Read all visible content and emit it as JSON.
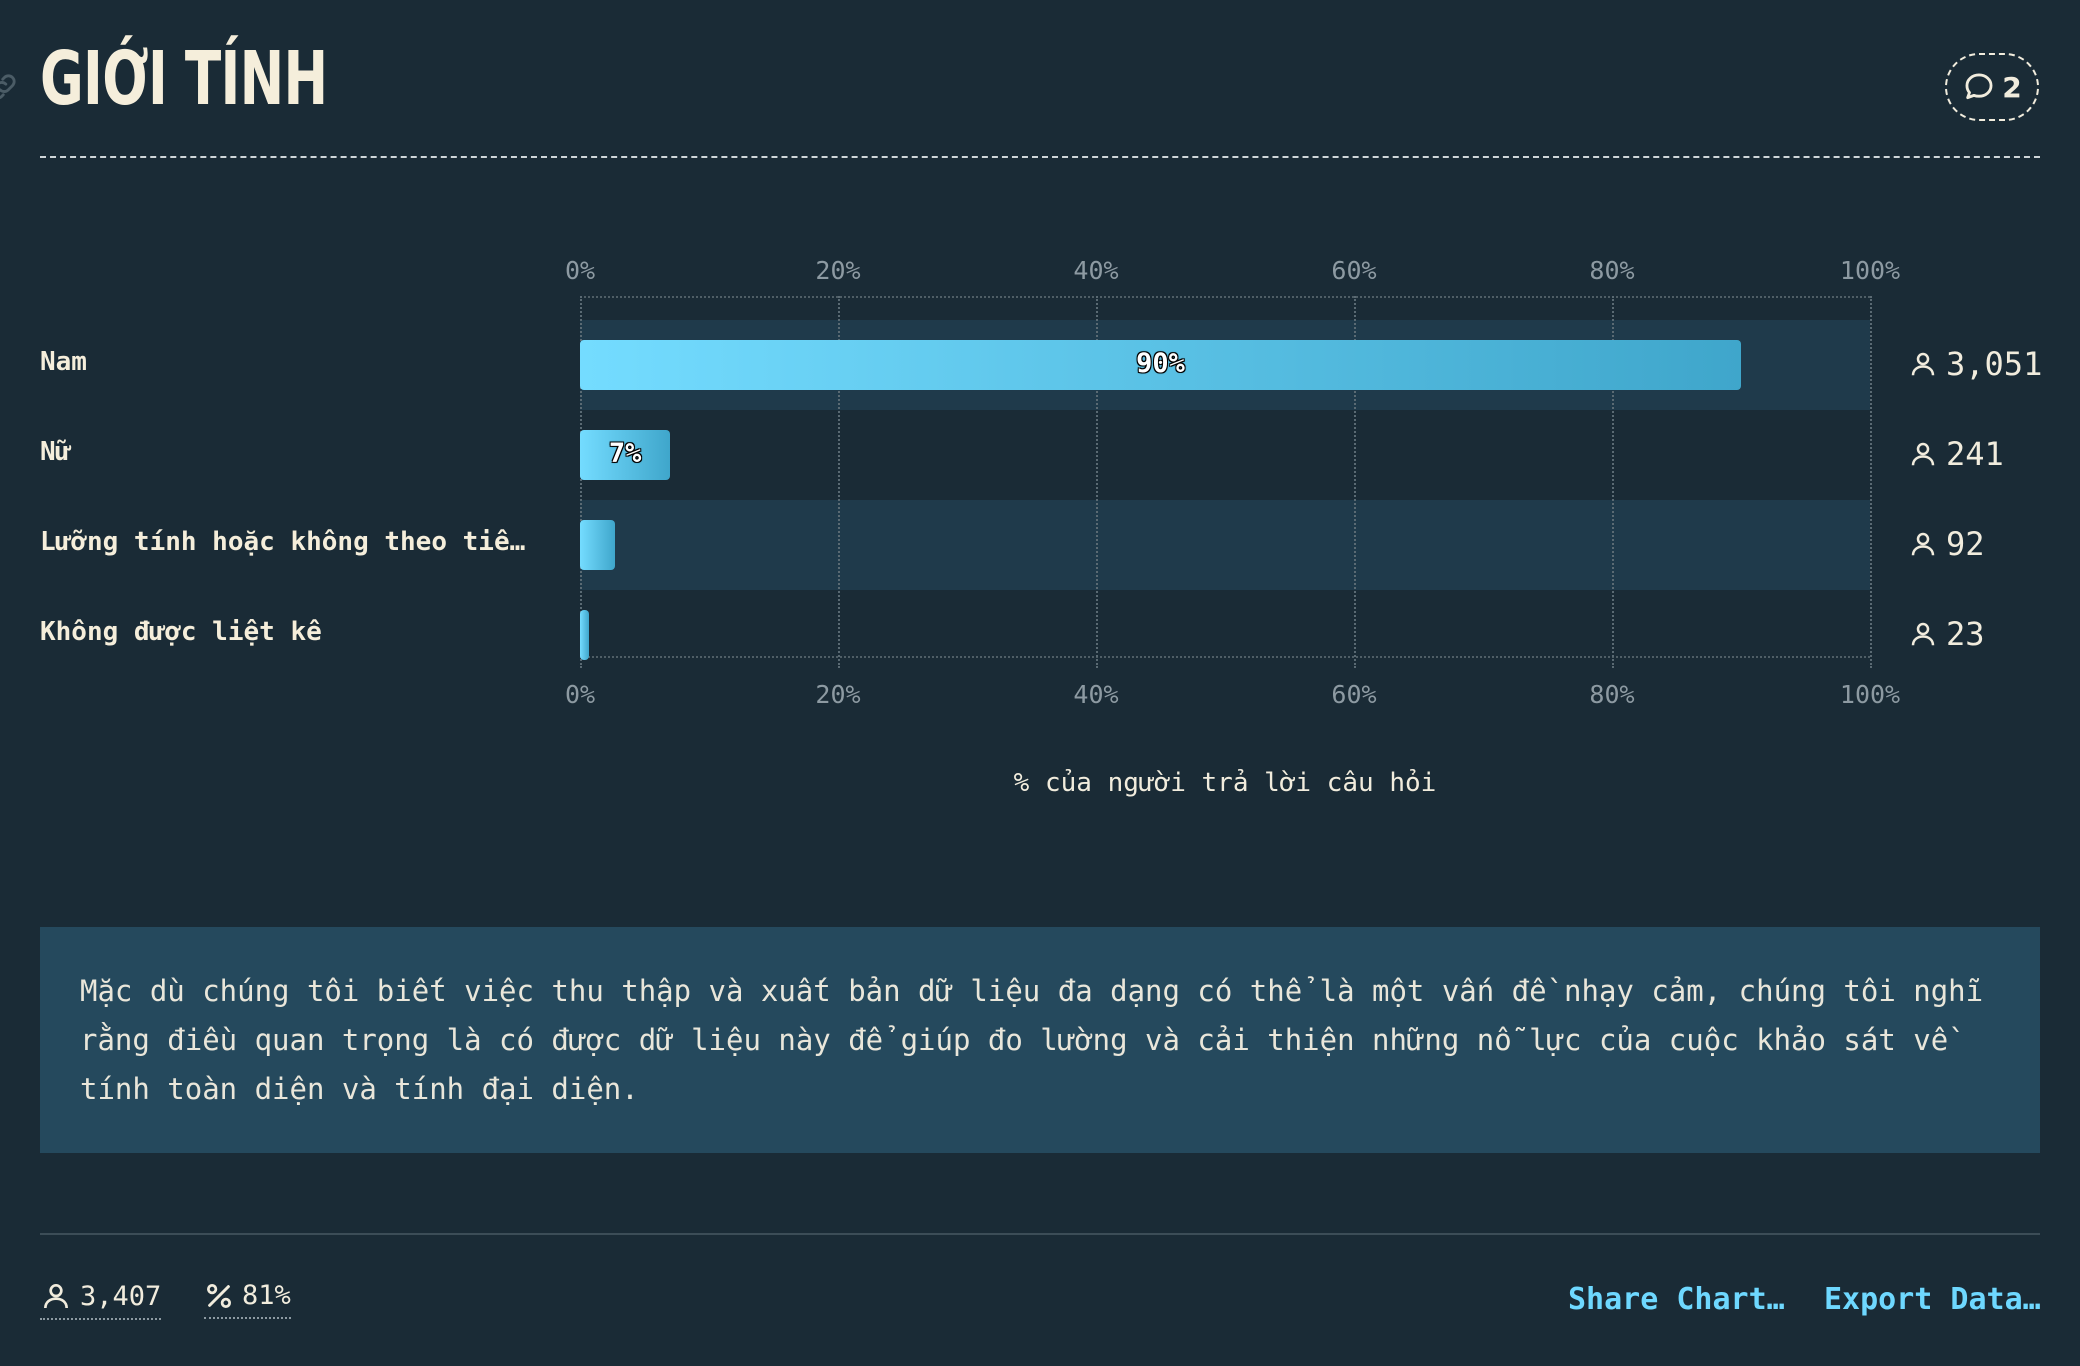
{
  "header": {
    "title": "GIỚI TÍNH",
    "comment_count": "2"
  },
  "chart_data": {
    "type": "bar",
    "orientation": "horizontal",
    "title": "",
    "xlabel": "% của người trả lời câu hỏi",
    "ylabel": "",
    "xlim": [
      0,
      100
    ],
    "ticks": [
      "0%",
      "20%",
      "40%",
      "60%",
      "80%",
      "100%"
    ],
    "categories": [
      "Nam",
      "Nữ",
      "Lưỡng tính hoặc không theo tiêu…",
      "Không được liệt kê"
    ],
    "values": [
      90,
      7,
      2.7,
      0.7
    ],
    "data_labels": [
      "90%",
      "7%",
      "",
      ""
    ],
    "counts": [
      "3,051",
      "241",
      "92",
      "23"
    ],
    "grid": true,
    "bar_gradient": [
      "#74dcff",
      "#3fa6cb"
    ]
  },
  "note": {
    "text": "Mặc dù chúng tôi biết việc thu thập và xuất bản dữ liệu đa dạng có thể là một vấn đề nhạy cảm, chúng tôi nghĩ rằng điều quan trọng là có được dữ liệu này để giúp đo lường và cải thiện những nỗ lực của cuộc khảo sát về tính toàn diện và tính đại diện."
  },
  "footer": {
    "respondents": "3,407",
    "percentage": "81%",
    "share_label": "Share Chart…",
    "export_label": "Export Data…"
  },
  "colors": {
    "background": "#1a2b36",
    "note_bg": "#25495d",
    "accent": "#6ed8ff",
    "row_highlight": "#1f3a4b",
    "text": "#f1ecdd"
  }
}
